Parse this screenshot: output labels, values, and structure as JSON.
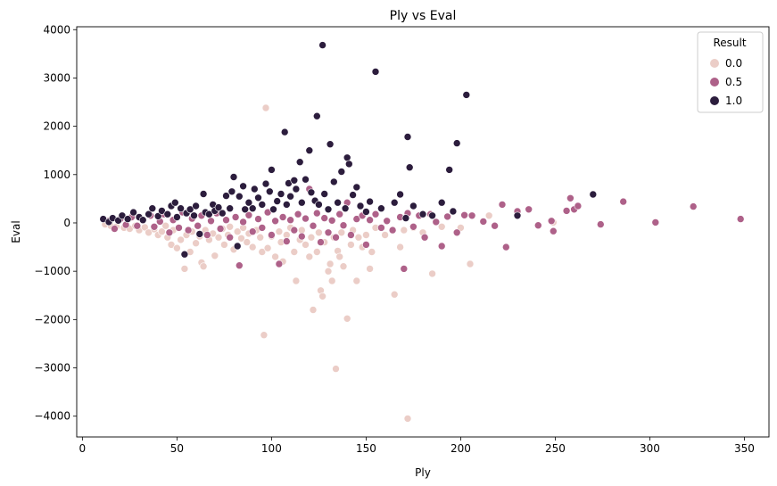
{
  "chart_data": {
    "type": "scatter",
    "title": "Ply vs Eval",
    "xlabel": "Ply",
    "ylabel": "Eval",
    "xlim": [
      -3,
      363
    ],
    "ylim": [
      -4430,
      4060
    ],
    "x_ticks": [
      0,
      50,
      100,
      150,
      200,
      250,
      300,
      350
    ],
    "y_ticks": [
      -4000,
      -3000,
      -2000,
      -1000,
      0,
      1000,
      2000,
      3000,
      4000
    ],
    "y_tick_labels": [
      "−4000",
      "−3000",
      "−2000",
      "−1000",
      "0",
      "1000",
      "2000",
      "3000",
      "4000"
    ],
    "grid": false,
    "legend": {
      "title": "Result",
      "placement": "top-right",
      "entries": [
        {
          "label": "0.0",
          "color": "#ebcdc7"
        },
        {
          "label": "0.5",
          "color": "#ae6189"
        },
        {
          "label": "1.0",
          "color": "#2c1d3d"
        }
      ]
    },
    "series": [
      {
        "name": "0.0",
        "color": "#ebcdc7",
        "points": [
          [
            12,
            -30
          ],
          [
            15,
            -60
          ],
          [
            18,
            -80
          ],
          [
            22,
            -100
          ],
          [
            25,
            -120
          ],
          [
            28,
            -60
          ],
          [
            30,
            -150
          ],
          [
            33,
            -90
          ],
          [
            35,
            -200
          ],
          [
            38,
            -130
          ],
          [
            40,
            -250
          ],
          [
            42,
            -180
          ],
          [
            44,
            -60
          ],
          [
            45,
            -300
          ],
          [
            47,
            -450
          ],
          [
            48,
            -150
          ],
          [
            50,
            -520
          ],
          [
            52,
            -350
          ],
          [
            54,
            -950
          ],
          [
            55,
            -250
          ],
          [
            57,
            -600
          ],
          [
            58,
            -180
          ],
          [
            60,
            -420
          ],
          [
            62,
            -280
          ],
          [
            63,
            -820
          ],
          [
            64,
            -900
          ],
          [
            65,
            -150
          ],
          [
            67,
            -350
          ],
          [
            69,
            -220
          ],
          [
            70,
            -680
          ],
          [
            72,
            -300
          ],
          [
            74,
            -120
          ],
          [
            75,
            -450
          ],
          [
            77,
            -250
          ],
          [
            78,
            -80
          ],
          [
            80,
            -550
          ],
          [
            82,
            -180
          ],
          [
            84,
            -320
          ],
          [
            85,
            -100
          ],
          [
            87,
            -400
          ],
          [
            88,
            -220
          ],
          [
            90,
            -500
          ],
          [
            92,
            -150
          ],
          [
            94,
            -300
          ],
          [
            95,
            -600
          ],
          [
            96,
            -2320
          ],
          [
            97,
            2380
          ],
          [
            98,
            -520
          ],
          [
            100,
            -280
          ],
          [
            102,
            -700
          ],
          [
            104,
            -180
          ],
          [
            105,
            -400
          ],
          [
            106,
            -800
          ],
          [
            108,
            -250
          ],
          [
            110,
            -100
          ],
          [
            112,
            -600
          ],
          [
            113,
            -1200
          ],
          [
            115,
            -350
          ],
          [
            116,
            -150
          ],
          [
            118,
            -450
          ],
          [
            120,
            -700
          ],
          [
            121,
            -300
          ],
          [
            122,
            -1800
          ],
          [
            124,
            -600
          ],
          [
            125,
            -200
          ],
          [
            126,
            -1400
          ],
          [
            127,
            -1520
          ],
          [
            128,
            -400
          ],
          [
            130,
            -1000
          ],
          [
            131,
            -850
          ],
          [
            132,
            -1200
          ],
          [
            133,
            -300
          ],
          [
            134,
            -3020
          ],
          [
            135,
            -580
          ],
          [
            136,
            -700
          ],
          [
            137,
            -200
          ],
          [
            138,
            -900
          ],
          [
            140,
            -1980
          ],
          [
            142,
            -450
          ],
          [
            143,
            -150
          ],
          [
            145,
            -1200
          ],
          [
            146,
            -300
          ],
          [
            148,
            -500
          ],
          [
            150,
            -250
          ],
          [
            152,
            -950
          ],
          [
            153,
            -600
          ],
          [
            155,
            -100
          ],
          [
            160,
            -250
          ],
          [
            165,
            -1480
          ],
          [
            168,
            -500
          ],
          [
            170,
            -150
          ],
          [
            172,
            -4050
          ],
          [
            175,
            -100
          ],
          [
            180,
            -200
          ],
          [
            185,
            -1050
          ],
          [
            190,
            -80
          ],
          [
            200,
            -100
          ],
          [
            205,
            -850
          ],
          [
            215,
            150
          ],
          [
            249,
            10
          ]
        ]
      },
      {
        "name": "0.5",
        "color": "#ae6189",
        "points": [
          [
            14,
            40
          ],
          [
            17,
            -120
          ],
          [
            20,
            80
          ],
          [
            23,
            -40
          ],
          [
            26,
            120
          ],
          [
            29,
            -60
          ],
          [
            32,
            50
          ],
          [
            36,
            150
          ],
          [
            38,
            -80
          ],
          [
            41,
            30
          ],
          [
            43,
            180
          ],
          [
            46,
            -200
          ],
          [
            48,
            60
          ],
          [
            51,
            -100
          ],
          [
            53,
            220
          ],
          [
            56,
            -150
          ],
          [
            58,
            90
          ],
          [
            61,
            -60
          ],
          [
            63,
            150
          ],
          [
            66,
            -250
          ],
          [
            68,
            40
          ],
          [
            71,
            200
          ],
          [
            73,
            -120
          ],
          [
            76,
            60
          ],
          [
            78,
            -300
          ],
          [
            81,
            120
          ],
          [
            83,
            -880
          ],
          [
            85,
            20
          ],
          [
            88,
            160
          ],
          [
            90,
            -180
          ],
          [
            93,
            80
          ],
          [
            95,
            -100
          ],
          [
            98,
            220
          ],
          [
            100,
            -250
          ],
          [
            102,
            40
          ],
          [
            104,
            -850
          ],
          [
            106,
            120
          ],
          [
            108,
            -380
          ],
          [
            110,
            60
          ],
          [
            112,
            -150
          ],
          [
            114,
            180
          ],
          [
            116,
            -280
          ],
          [
            118,
            90
          ],
          [
            120,
            700
          ],
          [
            122,
            -60
          ],
          [
            124,
            200
          ],
          [
            126,
            -400
          ],
          [
            128,
            100
          ],
          [
            130,
            -200
          ],
          [
            132,
            50
          ],
          [
            134,
            -300
          ],
          [
            136,
            180
          ],
          [
            138,
            -50
          ],
          [
            140,
            420
          ],
          [
            142,
            -250
          ],
          [
            145,
            80
          ],
          [
            148,
            150
          ],
          [
            150,
            -450
          ],
          [
            152,
            60
          ],
          [
            155,
            180
          ],
          [
            158,
            -100
          ],
          [
            161,
            40
          ],
          [
            164,
            -150
          ],
          [
            168,
            120
          ],
          [
            170,
            -950
          ],
          [
            172,
            200
          ],
          [
            175,
            -80
          ],
          [
            178,
            150
          ],
          [
            181,
            -300
          ],
          [
            184,
            180
          ],
          [
            187,
            20
          ],
          [
            190,
            -480
          ],
          [
            193,
            130
          ],
          [
            198,
            -200
          ],
          [
            202,
            160
          ],
          [
            206,
            150
          ],
          [
            212,
            30
          ],
          [
            218,
            -60
          ],
          [
            222,
            380
          ],
          [
            224,
            -500
          ],
          [
            230,
            240
          ],
          [
            236,
            280
          ],
          [
            241,
            -50
          ],
          [
            248,
            40
          ],
          [
            249,
            -170
          ],
          [
            256,
            250
          ],
          [
            258,
            510
          ],
          [
            260,
            280
          ],
          [
            262,
            350
          ],
          [
            274,
            -30
          ],
          [
            286,
            440
          ],
          [
            303,
            10
          ],
          [
            323,
            340
          ],
          [
            348,
            80
          ]
        ]
      },
      {
        "name": "1.0",
        "color": "#2c1d3d",
        "points": [
          [
            11,
            80
          ],
          [
            14,
            20
          ],
          [
            16,
            100
          ],
          [
            19,
            50
          ],
          [
            21,
            150
          ],
          [
            24,
            80
          ],
          [
            27,
            220
          ],
          [
            30,
            120
          ],
          [
            32,
            60
          ],
          [
            35,
            180
          ],
          [
            37,
            300
          ],
          [
            40,
            140
          ],
          [
            42,
            250
          ],
          [
            45,
            180
          ],
          [
            47,
            350
          ],
          [
            49,
            420
          ],
          [
            50,
            120
          ],
          [
            52,
            300
          ],
          [
            54,
            -650
          ],
          [
            55,
            200
          ],
          [
            57,
            280
          ],
          [
            59,
            150
          ],
          [
            60,
            350
          ],
          [
            62,
            -230
          ],
          [
            64,
            600
          ],
          [
            65,
            220
          ],
          [
            67,
            180
          ],
          [
            69,
            380
          ],
          [
            70,
            250
          ],
          [
            72,
            320
          ],
          [
            74,
            200
          ],
          [
            76,
            560
          ],
          [
            78,
            300
          ],
          [
            79,
            650
          ],
          [
            80,
            950
          ],
          [
            82,
            -480
          ],
          [
            83,
            550
          ],
          [
            85,
            760
          ],
          [
            86,
            280
          ],
          [
            88,
            420
          ],
          [
            90,
            300
          ],
          [
            91,
            700
          ],
          [
            93,
            520
          ],
          [
            95,
            380
          ],
          [
            97,
            810
          ],
          [
            99,
            650
          ],
          [
            100,
            1100
          ],
          [
            101,
            280
          ],
          [
            103,
            450
          ],
          [
            105,
            600
          ],
          [
            107,
            1880
          ],
          [
            108,
            380
          ],
          [
            109,
            820
          ],
          [
            110,
            550
          ],
          [
            112,
            880
          ],
          [
            113,
            700
          ],
          [
            115,
            1260
          ],
          [
            116,
            420
          ],
          [
            118,
            900
          ],
          [
            120,
            1500
          ],
          [
            121,
            630
          ],
          [
            123,
            460
          ],
          [
            124,
            2210
          ],
          [
            125,
            380
          ],
          [
            127,
            3680
          ],
          [
            128,
            600
          ],
          [
            130,
            280
          ],
          [
            131,
            1630
          ],
          [
            133,
            850
          ],
          [
            135,
            420
          ],
          [
            137,
            1060
          ],
          [
            139,
            300
          ],
          [
            140,
            1350
          ],
          [
            141,
            1220
          ],
          [
            143,
            580
          ],
          [
            145,
            740
          ],
          [
            147,
            350
          ],
          [
            150,
            230
          ],
          [
            152,
            440
          ],
          [
            155,
            3130
          ],
          [
            158,
            300
          ],
          [
            165,
            420
          ],
          [
            168,
            590
          ],
          [
            171,
            100
          ],
          [
            172,
            1780
          ],
          [
            173,
            1150
          ],
          [
            175,
            350
          ],
          [
            180,
            180
          ],
          [
            185,
            150
          ],
          [
            190,
            420
          ],
          [
            194,
            1100
          ],
          [
            196,
            240
          ],
          [
            198,
            1650
          ],
          [
            203,
            2650
          ],
          [
            230,
            150
          ],
          [
            270,
            590
          ]
        ]
      }
    ]
  }
}
